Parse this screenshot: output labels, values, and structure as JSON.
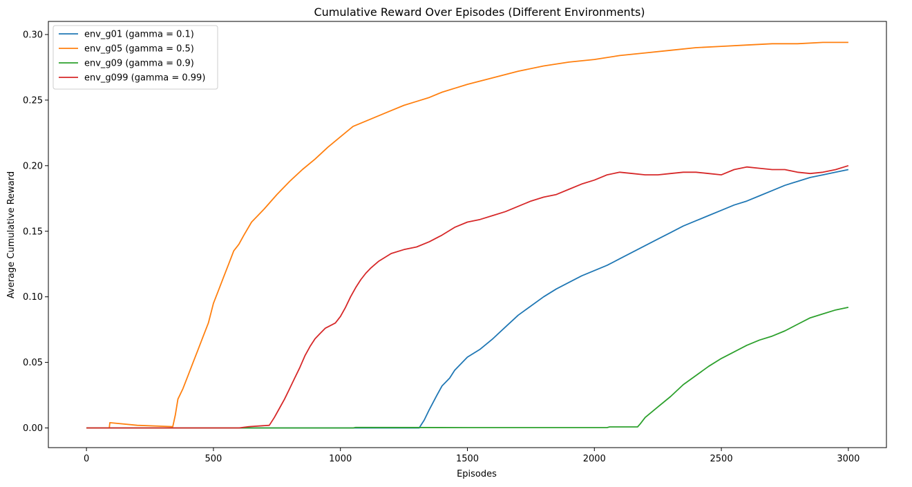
{
  "chart_data": {
    "type": "line",
    "title": "Cumulative Reward Over Episodes (Different Environments)",
    "xlabel": "Episodes",
    "ylabel": "Average Cumulative Reward",
    "xlim": [
      -150,
      3150
    ],
    "ylim": [
      -0.015,
      0.31
    ],
    "x_ticks": [
      0,
      500,
      1000,
      1500,
      2000,
      2500,
      3000
    ],
    "y_ticks": [
      0.0,
      0.05,
      0.1,
      0.15,
      0.2,
      0.25,
      0.3
    ],
    "x_tick_labels": [
      "0",
      "500",
      "1000",
      "1500",
      "2000",
      "2500",
      "3000"
    ],
    "y_tick_labels": [
      "0.00",
      "0.05",
      "0.10",
      "0.15",
      "0.20",
      "0.25",
      "0.30"
    ],
    "grid": false,
    "legend_position": "top-left",
    "series": [
      {
        "name": "env_g01 (gamma = 0.1)",
        "color": "#1f77b4",
        "x": [
          0,
          1310,
          1330,
          1350,
          1380,
          1400,
          1430,
          1450,
          1480,
          1500,
          1550,
          1600,
          1650,
          1700,
          1750,
          1800,
          1850,
          1900,
          1950,
          2000,
          2050,
          2100,
          2150,
          2200,
          2250,
          2300,
          2350,
          2400,
          2450,
          2500,
          2550,
          2600,
          2650,
          2700,
          2750,
          2800,
          2850,
          2900,
          2950,
          3000
        ],
        "y": [
          0.0,
          0.0,
          0.006,
          0.014,
          0.025,
          0.032,
          0.038,
          0.044,
          0.05,
          0.054,
          0.06,
          0.068,
          0.077,
          0.086,
          0.093,
          0.1,
          0.106,
          0.111,
          0.116,
          0.12,
          0.124,
          0.129,
          0.134,
          0.139,
          0.144,
          0.149,
          0.154,
          0.158,
          0.162,
          0.166,
          0.17,
          0.173,
          0.177,
          0.181,
          0.185,
          0.188,
          0.191,
          0.193,
          0.195,
          0.197
        ]
      },
      {
        "name": "env_g05 (gamma = 0.5)",
        "color": "#ff7f0e",
        "x": [
          0,
          90,
          92,
          200,
          340,
          350,
          360,
          380,
          400,
          420,
          440,
          460,
          480,
          500,
          520,
          540,
          560,
          580,
          600,
          620,
          650,
          680,
          700,
          750,
          800,
          850,
          900,
          950,
          1000,
          1050,
          1100,
          1150,
          1200,
          1250,
          1300,
          1350,
          1400,
          1450,
          1500,
          1600,
          1700,
          1800,
          1900,
          2000,
          2100,
          2200,
          2300,
          2400,
          2500,
          2600,
          2700,
          2800,
          2900,
          3000
        ],
        "y": [
          0.0,
          0.0,
          0.004,
          0.002,
          0.001,
          0.01,
          0.022,
          0.03,
          0.04,
          0.05,
          0.06,
          0.07,
          0.08,
          0.095,
          0.105,
          0.115,
          0.125,
          0.135,
          0.14,
          0.147,
          0.157,
          0.163,
          0.167,
          0.178,
          0.188,
          0.197,
          0.205,
          0.214,
          0.222,
          0.23,
          0.234,
          0.238,
          0.242,
          0.246,
          0.249,
          0.252,
          0.256,
          0.259,
          0.262,
          0.267,
          0.272,
          0.276,
          0.279,
          0.281,
          0.284,
          0.286,
          0.288,
          0.29,
          0.291,
          0.292,
          0.293,
          0.293,
          0.294,
          0.294
        ]
      },
      {
        "name": "env_g09 (gamma = 0.9)",
        "color": "#2ca02c",
        "x": [
          0,
          1050,
          1060,
          1500,
          2050,
          2060,
          2170,
          2180,
          2200,
          2250,
          2300,
          2350,
          2400,
          2450,
          2500,
          2550,
          2600,
          2650,
          2700,
          2750,
          2800,
          2850,
          2900,
          2950,
          3000
        ],
        "y": [
          0.0,
          0.0,
          0.0004,
          0.0003,
          0.0003,
          0.0008,
          0.0008,
          0.003,
          0.008,
          0.016,
          0.024,
          0.033,
          0.04,
          0.047,
          0.053,
          0.058,
          0.063,
          0.067,
          0.07,
          0.074,
          0.079,
          0.084,
          0.087,
          0.09,
          0.092
        ]
      },
      {
        "name": "env_g099 (gamma = 0.99)",
        "color": "#d62728",
        "x": [
          0,
          600,
          640,
          720,
          740,
          760,
          780,
          800,
          820,
          840,
          860,
          880,
          900,
          920,
          940,
          960,
          980,
          1000,
          1020,
          1040,
          1060,
          1080,
          1100,
          1120,
          1150,
          1200,
          1250,
          1300,
          1350,
          1400,
          1450,
          1500,
          1550,
          1600,
          1650,
          1700,
          1750,
          1800,
          1850,
          1900,
          1950,
          2000,
          2050,
          2100,
          2150,
          2200,
          2250,
          2300,
          2350,
          2400,
          2450,
          2500,
          2550,
          2600,
          2650,
          2700,
          2750,
          2800,
          2850,
          2900,
          2950,
          3000
        ],
        "y": [
          0.0,
          0.0,
          0.001,
          0.002,
          0.008,
          0.015,
          0.022,
          0.03,
          0.038,
          0.046,
          0.055,
          0.062,
          0.068,
          0.072,
          0.076,
          0.078,
          0.08,
          0.085,
          0.092,
          0.1,
          0.107,
          0.113,
          0.118,
          0.122,
          0.127,
          0.133,
          0.136,
          0.138,
          0.142,
          0.147,
          0.153,
          0.157,
          0.159,
          0.162,
          0.165,
          0.169,
          0.173,
          0.176,
          0.178,
          0.182,
          0.186,
          0.189,
          0.193,
          0.195,
          0.194,
          0.193,
          0.193,
          0.194,
          0.195,
          0.195,
          0.194,
          0.193,
          0.197,
          0.199,
          0.198,
          0.197,
          0.197,
          0.195,
          0.194,
          0.195,
          0.197,
          0.2
        ]
      }
    ]
  }
}
